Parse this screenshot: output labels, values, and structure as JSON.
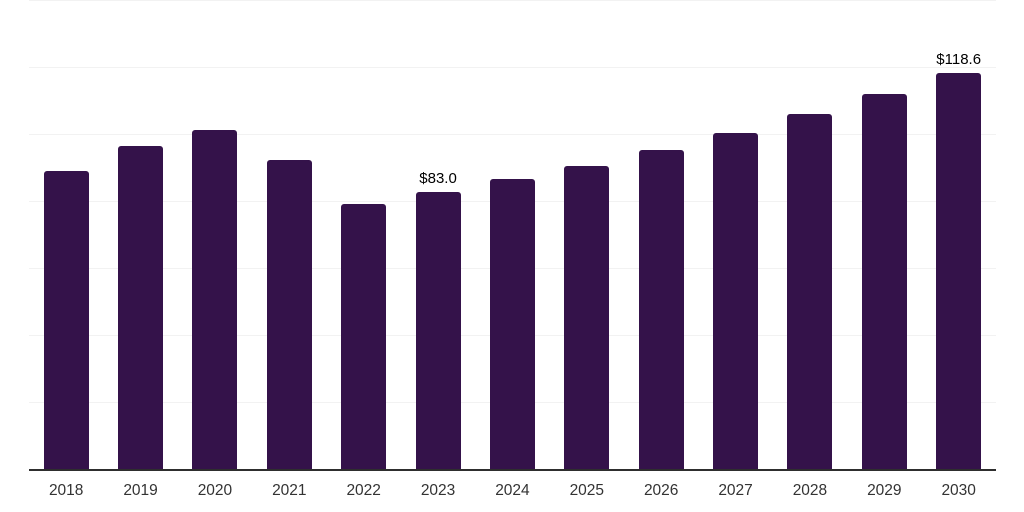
{
  "chart_data": {
    "type": "bar",
    "title": "",
    "xlabel": "",
    "ylabel": "",
    "categories": [
      "2018",
      "2019",
      "2020",
      "2021",
      "2022",
      "2023",
      "2024",
      "2025",
      "2026",
      "2027",
      "2028",
      "2029",
      "2030"
    ],
    "values": [
      89.3,
      96.8,
      101.5,
      92.5,
      79.3,
      83.0,
      86.9,
      90.8,
      95.5,
      100.7,
      106.3,
      112.2,
      118.6
    ],
    "point_labels": [
      "",
      "",
      "",
      "",
      "",
      "$83.0",
      "",
      "",
      "",
      "",
      "",
      "",
      "$118.6"
    ],
    "value_prefix": "$",
    "ylim": [
      0,
      140
    ],
    "grid_step": 20,
    "grid": true,
    "legend_position": "none",
    "bar_color": "#34124a"
  },
  "colors": {
    "background": "#ffffff",
    "bar": "#34124a",
    "gridline": "#f2f2f2",
    "axis_line": "#2e2e2e",
    "x_label_text": "#333333",
    "value_label_text": "#000000"
  }
}
